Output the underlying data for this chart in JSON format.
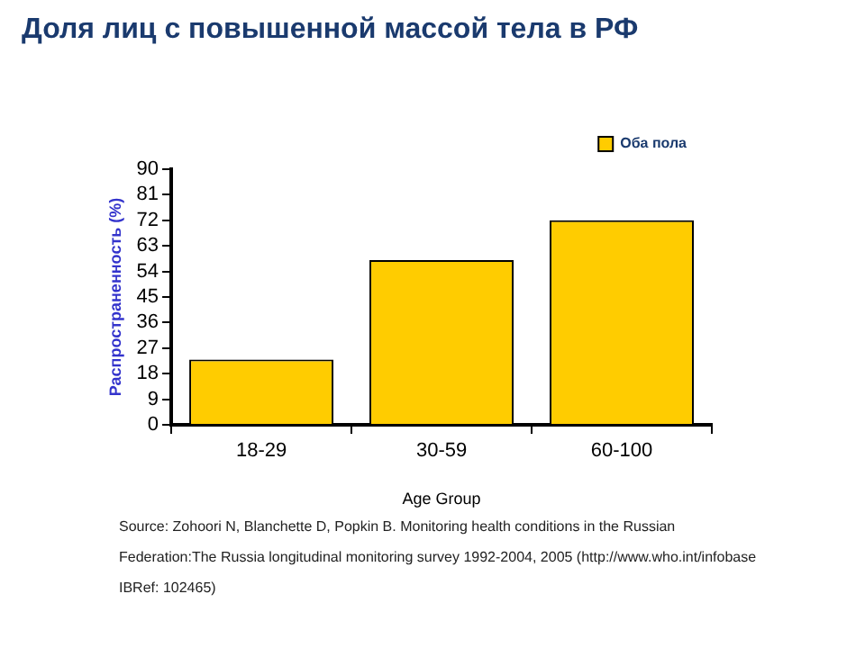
{
  "chart_data": {
    "type": "bar",
    "title": "Доля лиц с повышенной массой тела в РФ",
    "xlabel": "Age Group",
    "ylabel": "Распространенность (%)",
    "categories": [
      "18-29",
      "30-59",
      "60-100"
    ],
    "series": [
      {
        "name": "Оба пола",
        "color": "#ffcc00",
        "values": [
          23,
          58,
          72
        ]
      }
    ],
    "ylim": [
      0,
      90
    ],
    "yticks": [
      0,
      9,
      18,
      27,
      36,
      45,
      54,
      63,
      72,
      81,
      90
    ],
    "grid": false,
    "legend": "top right",
    "annotations": [
      "Source: Zohoori N, Blanchette D, Popkin B. Monitoring health conditions in the Russian",
      "Federation:The Russia longitudinal monitoring survey 1992-2004, 2005  (http://www.who.int/infobase",
      "IBRef: 102465)"
    ]
  }
}
